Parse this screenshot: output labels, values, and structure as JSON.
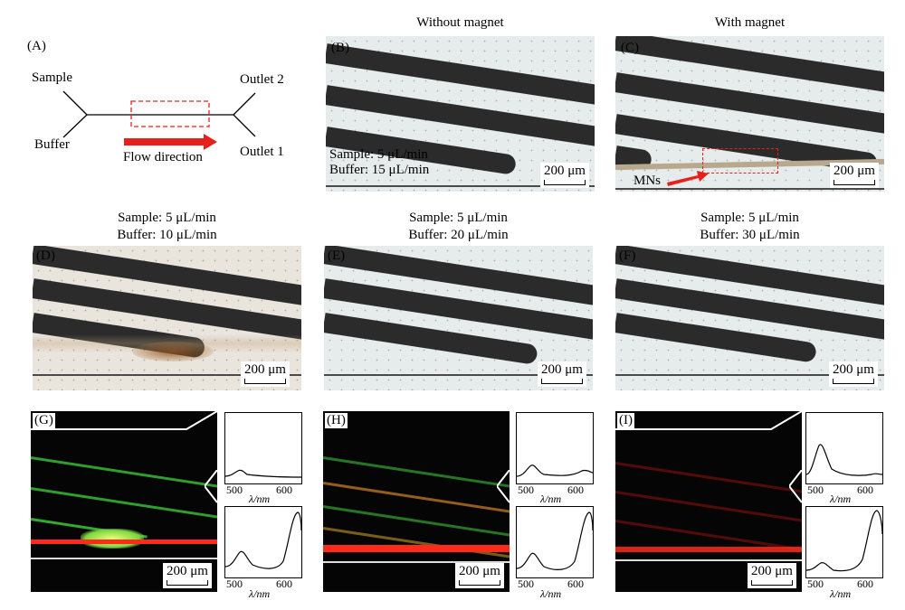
{
  "panels": {
    "A": {
      "tag": "(A)",
      "sample": "Sample",
      "buffer": "Buffer",
      "outlet2": "Outlet 2",
      "outlet1": "Outlet 1",
      "flow": "Flow direction"
    },
    "B": {
      "tag": "(B)",
      "header": "Without magnet",
      "line1": "Sample: 5 μL/min",
      "line2": "Buffer: 15 μL/min",
      "scale": "200 μm"
    },
    "C": {
      "tag": "(C)",
      "header": "With magnet",
      "mns": "MNs",
      "scale": "200 μm"
    },
    "D": {
      "tag": "(D)",
      "header1": "Sample: 5 μL/min",
      "header2": "Buffer: 10 μL/min",
      "scale": "200 μm"
    },
    "E": {
      "tag": "(E)",
      "header1": "Sample: 5 μL/min",
      "header2": "Buffer: 20 μL/min",
      "scale": "200 μm"
    },
    "F": {
      "tag": "(F)",
      "header1": "Sample: 5 μL/min",
      "header2": "Buffer: 30 μL/min",
      "scale": "200 μm"
    },
    "G": {
      "tag": "(G)",
      "scale": "200 μm"
    },
    "H": {
      "tag": "(H)",
      "scale": "200 μm"
    },
    "I": {
      "tag": "(I)",
      "scale": "200 μm"
    }
  },
  "spectra_axis": {
    "tick1": "500",
    "tick2": "600",
    "label": "λ/nm"
  },
  "colors": {
    "magnetic_arrow": "#e8201c",
    "dashed_box": "#e8201c",
    "green": "#3fd23a",
    "red": "#ff2a1a"
  }
}
